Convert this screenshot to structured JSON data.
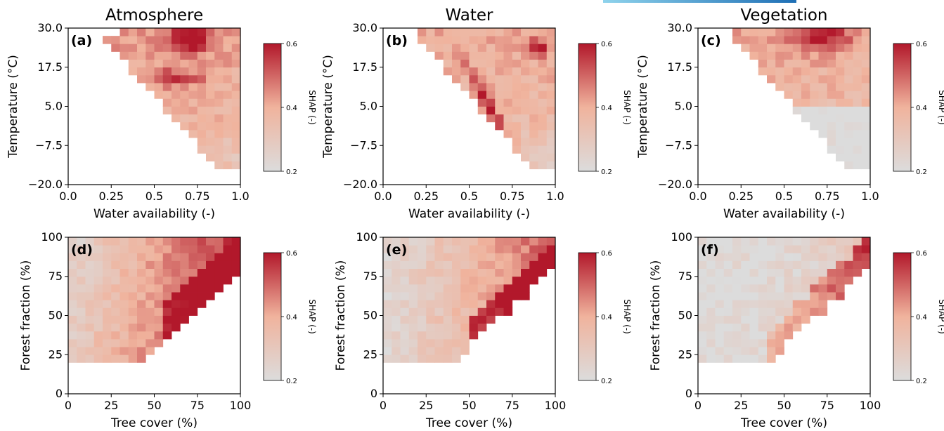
{
  "colors": {
    "scale_low": "#dcdcdc",
    "scale_mid": "#f0b39d",
    "scale_high": "#b2182b",
    "top_bar_start": "#8fd3ec",
    "top_bar_end": "#1e6fb5"
  },
  "column_titles": [
    "Atmosphere",
    "Water",
    "Vegetation"
  ],
  "colorbar": {
    "label": "SHAP (-)",
    "ticks": [
      "0.2",
      "0.4",
      "0.6"
    ],
    "range": [
      0.2,
      0.6
    ],
    "colormap": "light-grey to dark-red"
  },
  "chart_data": [
    {
      "type": "heatmap",
      "panel": "(a)",
      "title": "Atmosphere",
      "xlabel": "Water availability (-)",
      "ylabel": "Temperature (°C)",
      "xlim": [
        0.0,
        1.0
      ],
      "ylim": [
        -20.0,
        30.0
      ],
      "xticks": [
        "0.0",
        "0.25",
        "0.5",
        "0.75",
        "1.0"
      ],
      "yticks": [
        "−20.0",
        "−7.5",
        "5.0",
        "17.5",
        "30.0"
      ],
      "colorbar_label": "SHAP (-)",
      "value_range": [
        0.2,
        0.6
      ],
      "pattern": "cells present mostly above x≈0.2; dark-red cluster near x 0.55–0.8 and T 20–30, and x 0.5–0.8 near T 12–15; low values toward lower right"
    },
    {
      "type": "heatmap",
      "panel": "(b)",
      "title": "Water",
      "xlabel": "Water availability (-)",
      "ylabel": "Temperature (°C)",
      "xlim": [
        0.0,
        1.0
      ],
      "ylim": [
        -20.0,
        30.0
      ],
      "xticks": [
        "0.0",
        "0.25",
        "0.5",
        "0.75",
        "1.0"
      ],
      "yticks": [
        "−20.0",
        "−7.5",
        "5.0",
        "17.5",
        "30.0"
      ],
      "colorbar_label": "SHAP (-)",
      "value_range": [
        0.2,
        0.6
      ],
      "pattern": "dark-red diagonal band from x≈0.5,T≈10 to x≈0.7,T≈2; dark red at x≈0.9,T≈25; grey at lower right"
    },
    {
      "type": "heatmap",
      "panel": "(c)",
      "title": "Vegetation",
      "xlabel": "Water availability (-)",
      "ylabel": "Temperature (°C)",
      "xlim": [
        0.0,
        1.0
      ],
      "ylim": [
        -20.0,
        30.0
      ],
      "xticks": [
        "0.0",
        "0.25",
        "0.5",
        "0.75",
        "1.0"
      ],
      "yticks": [
        "−20.0",
        "−7.5",
        "5.0",
        "17.5",
        "30.0"
      ],
      "colorbar_label": "SHAP (-)",
      "value_range": [
        0.2,
        0.6
      ],
      "pattern": "warm region at top (T 20–30, x 0.55–0.95); large grey region for T below 5 and x above 0.55"
    },
    {
      "type": "heatmap",
      "panel": "(d)",
      "xlabel": "Tree cover (%)",
      "ylabel": "Forest fraction (%)",
      "xlim": [
        0,
        100
      ],
      "ylim": [
        0,
        100
      ],
      "xticks": [
        "0",
        "25",
        "50",
        "75",
        "100"
      ],
      "yticks": [
        "0",
        "25",
        "50",
        "75",
        "100"
      ],
      "colorbar_label": "SHAP (-)",
      "value_range": [
        0.2,
        0.6
      ],
      "pattern": "upper-left triangle above y≈20; values increase with tree cover; dark red for tree cover above ~60"
    },
    {
      "type": "heatmap",
      "panel": "(e)",
      "xlabel": "Tree cover (%)",
      "ylabel": "Forest fraction (%)",
      "xlim": [
        0,
        100
      ],
      "ylim": [
        0,
        100
      ],
      "xticks": [
        "0",
        "25",
        "50",
        "75",
        "100"
      ],
      "yticks": [
        "0",
        "25",
        "50",
        "75",
        "100"
      ],
      "colorbar_label": "SHAP (-)",
      "value_range": [
        0.2,
        0.6
      ],
      "pattern": "grey at low tree cover, light red in middle, dark red along diagonal edge near tree cover 60–80"
    },
    {
      "type": "heatmap",
      "panel": "(f)",
      "xlabel": "Tree cover (%)",
      "ylabel": "Forest fraction (%)",
      "xlim": [
        0,
        100
      ],
      "ylim": [
        0,
        100
      ],
      "xticks": [
        "0",
        "25",
        "50",
        "75",
        "100"
      ],
      "yticks": [
        "0",
        "25",
        "50",
        "75",
        "100"
      ],
      "colorbar_label": "SHAP (-)",
      "value_range": [
        0.2,
        0.6
      ],
      "pattern": "mostly grey; red band only along diagonal edge from tree cover ~45 to ~90"
    }
  ]
}
